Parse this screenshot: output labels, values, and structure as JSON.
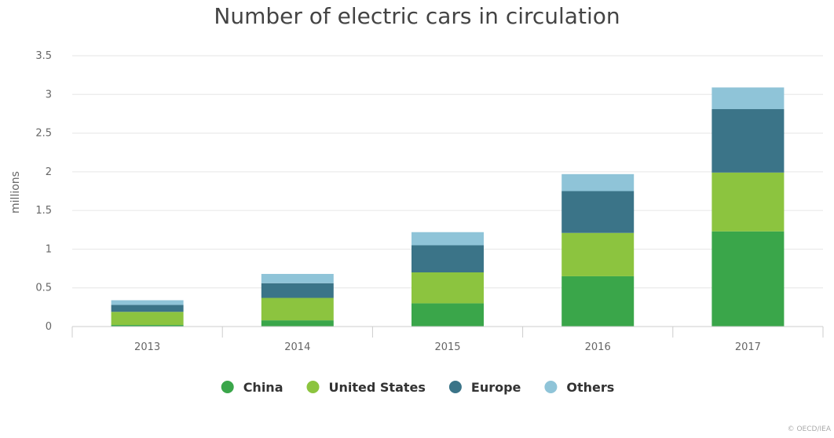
{
  "chart_data": {
    "type": "bar",
    "stacked": true,
    "title": "Number of electric cars in circulation",
    "xlabel": "",
    "ylabel": "millions",
    "ylim": [
      0,
      3.5
    ],
    "yticks": [
      {
        "value": 0,
        "label": "0"
      },
      {
        "value": 0.5,
        "label": "0.5"
      },
      {
        "value": 1,
        "label": "1"
      },
      {
        "value": 1.5,
        "label": "1.5"
      },
      {
        "value": 2,
        "label": "2"
      },
      {
        "value": 2.5,
        "label": "2.5"
      },
      {
        "value": 3,
        "label": "3"
      },
      {
        "value": 3.5,
        "label": "3.5"
      }
    ],
    "categories": [
      "2013",
      "2014",
      "2015",
      "2016",
      "2017"
    ],
    "series": [
      {
        "name": "China",
        "color": "#3aa64a",
        "values": [
          0.02,
          0.08,
          0.3,
          0.65,
          1.23
        ]
      },
      {
        "name": "United States",
        "color": "#8cc43f",
        "values": [
          0.17,
          0.29,
          0.4,
          0.56,
          0.76
        ]
      },
      {
        "name": "Europe",
        "color": "#3b7488",
        "values": [
          0.09,
          0.19,
          0.35,
          0.54,
          0.82
        ]
      },
      {
        "name": "Others",
        "color": "#8fc4d8",
        "values": [
          0.06,
          0.12,
          0.17,
          0.22,
          0.28
        ]
      }
    ],
    "grid": true,
    "legend_position": "bottom"
  },
  "source": "© OECD/IEA"
}
